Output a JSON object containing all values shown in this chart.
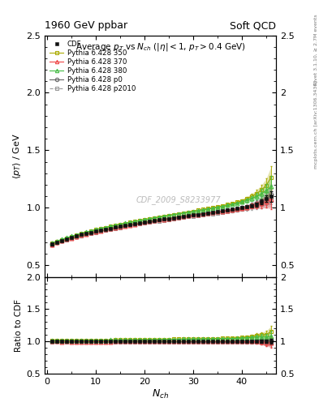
{
  "title_top": "1960 GeV ppbar",
  "title_right": "Soft QCD",
  "plot_title": "Average $p_T$ vs $N_{ch}$ ($|\\eta| < 1$, $p_T > 0.4$ GeV)",
  "ylabel_main": "$\\langle p_T \\rangle$ / GeV",
  "ylabel_ratio": "Ratio to CDF",
  "xlabel": "$N_{ch}$",
  "right_label_top": "Rivet 3.1.10, ≥ 2.7M events",
  "right_label_bot": "mcplots.cern.ch [arXiv:1306.3436]",
  "watermark": "CDF_2009_S8233977",
  "ylim_main": [
    0.4,
    2.5
  ],
  "ylim_ratio": [
    0.5,
    2.0
  ],
  "xlim": [
    -0.5,
    47
  ],
  "yticks_main": [
    0.5,
    1.0,
    1.5,
    2.0,
    2.5
  ],
  "yticks_ratio": [
    0.5,
    1.0,
    1.5,
    2.0
  ],
  "xticks": [
    0,
    10,
    20,
    30,
    40
  ],
  "bg_color": "#ffffff",
  "series": {
    "CDF": {
      "x": [
        1,
        2,
        3,
        4,
        5,
        6,
        7,
        8,
        9,
        10,
        11,
        12,
        13,
        14,
        15,
        16,
        17,
        18,
        19,
        20,
        21,
        22,
        23,
        24,
        25,
        26,
        27,
        28,
        29,
        30,
        31,
        32,
        33,
        34,
        35,
        36,
        37,
        38,
        39,
        40,
        41,
        42,
        43,
        44,
        45,
        46
      ],
      "y": [
        0.685,
        0.7,
        0.716,
        0.73,
        0.744,
        0.756,
        0.767,
        0.778,
        0.788,
        0.797,
        0.806,
        0.815,
        0.823,
        0.831,
        0.839,
        0.847,
        0.854,
        0.861,
        0.868,
        0.875,
        0.882,
        0.889,
        0.895,
        0.901,
        0.907,
        0.913,
        0.919,
        0.925,
        0.931,
        0.937,
        0.943,
        0.949,
        0.955,
        0.961,
        0.967,
        0.973,
        0.98,
        0.987,
        0.994,
        1.001,
        1.01,
        1.02,
        1.03,
        1.05,
        1.08,
        1.1
      ],
      "yerr": [
        0.01,
        0.007,
        0.006,
        0.005,
        0.005,
        0.004,
        0.004,
        0.004,
        0.004,
        0.003,
        0.003,
        0.003,
        0.003,
        0.003,
        0.003,
        0.003,
        0.003,
        0.003,
        0.003,
        0.003,
        0.003,
        0.003,
        0.003,
        0.003,
        0.003,
        0.003,
        0.003,
        0.003,
        0.003,
        0.003,
        0.003,
        0.003,
        0.004,
        0.004,
        0.004,
        0.005,
        0.005,
        0.006,
        0.007,
        0.008,
        0.01,
        0.013,
        0.017,
        0.022,
        0.03,
        0.045
      ],
      "color": "#111111",
      "marker": "s",
      "markersize": 3.5,
      "zorder": 10,
      "filled": true,
      "linestyle": "none"
    },
    "Pythia350": {
      "x": [
        1,
        2,
        3,
        4,
        5,
        6,
        7,
        8,
        9,
        10,
        11,
        12,
        13,
        14,
        15,
        16,
        17,
        18,
        19,
        20,
        21,
        22,
        23,
        24,
        25,
        26,
        27,
        28,
        29,
        30,
        31,
        32,
        33,
        34,
        35,
        36,
        37,
        38,
        39,
        40,
        41,
        42,
        43,
        44,
        45,
        46
      ],
      "y": [
        0.69,
        0.708,
        0.723,
        0.738,
        0.752,
        0.764,
        0.776,
        0.788,
        0.799,
        0.81,
        0.82,
        0.829,
        0.839,
        0.848,
        0.857,
        0.865,
        0.874,
        0.882,
        0.89,
        0.898,
        0.906,
        0.913,
        0.921,
        0.928,
        0.935,
        0.943,
        0.95,
        0.957,
        0.964,
        0.971,
        0.979,
        0.986,
        0.994,
        1.002,
        1.01,
        1.019,
        1.028,
        1.038,
        1.049,
        1.062,
        1.08,
        1.1,
        1.125,
        1.155,
        1.195,
        1.265
      ],
      "yerr": [
        0.015,
        0.01,
        0.008,
        0.007,
        0.006,
        0.006,
        0.005,
        0.005,
        0.005,
        0.004,
        0.004,
        0.004,
        0.004,
        0.004,
        0.004,
        0.004,
        0.004,
        0.004,
        0.004,
        0.004,
        0.004,
        0.004,
        0.004,
        0.004,
        0.004,
        0.004,
        0.004,
        0.004,
        0.005,
        0.005,
        0.005,
        0.005,
        0.006,
        0.006,
        0.007,
        0.007,
        0.008,
        0.009,
        0.011,
        0.013,
        0.017,
        0.022,
        0.03,
        0.042,
        0.06,
        0.095
      ],
      "color": "#aaaa00",
      "marker": "s",
      "markersize": 3.5,
      "zorder": 6,
      "filled": false,
      "linestyle": "-"
    },
    "Pythia370": {
      "x": [
        1,
        2,
        3,
        4,
        5,
        6,
        7,
        8,
        9,
        10,
        11,
        12,
        13,
        14,
        15,
        16,
        17,
        18,
        19,
        20,
        21,
        22,
        23,
        24,
        25,
        26,
        27,
        28,
        29,
        30,
        31,
        32,
        33,
        34,
        35,
        36,
        37,
        38,
        39,
        40,
        41,
        42,
        43,
        44,
        45,
        46
      ],
      "y": [
        0.682,
        0.698,
        0.712,
        0.726,
        0.738,
        0.75,
        0.761,
        0.772,
        0.782,
        0.791,
        0.801,
        0.81,
        0.818,
        0.827,
        0.835,
        0.843,
        0.851,
        0.858,
        0.866,
        0.873,
        0.88,
        0.887,
        0.894,
        0.9,
        0.907,
        0.913,
        0.919,
        0.925,
        0.931,
        0.937,
        0.943,
        0.948,
        0.954,
        0.96,
        0.966,
        0.971,
        0.977,
        0.983,
        0.99,
        0.997,
        1.005,
        1.015,
        1.025,
        1.038,
        1.055,
        1.075
      ],
      "yerr": [
        0.015,
        0.01,
        0.008,
        0.007,
        0.006,
        0.006,
        0.005,
        0.005,
        0.005,
        0.004,
        0.004,
        0.004,
        0.004,
        0.004,
        0.004,
        0.004,
        0.004,
        0.004,
        0.004,
        0.004,
        0.004,
        0.004,
        0.004,
        0.004,
        0.004,
        0.004,
        0.004,
        0.004,
        0.005,
        0.005,
        0.005,
        0.005,
        0.006,
        0.006,
        0.007,
        0.007,
        0.008,
        0.009,
        0.011,
        0.013,
        0.017,
        0.022,
        0.03,
        0.042,
        0.055,
        0.085
      ],
      "color": "#ee4444",
      "marker": "^",
      "markersize": 3.5,
      "zorder": 7,
      "filled": false,
      "linestyle": "-"
    },
    "Pythia380": {
      "x": [
        1,
        2,
        3,
        4,
        5,
        6,
        7,
        8,
        9,
        10,
        11,
        12,
        13,
        14,
        15,
        16,
        17,
        18,
        19,
        20,
        21,
        22,
        23,
        24,
        25,
        26,
        27,
        28,
        29,
        30,
        31,
        32,
        33,
        34,
        35,
        36,
        37,
        38,
        39,
        40,
        41,
        42,
        43,
        44,
        45,
        46
      ],
      "y": [
        0.692,
        0.71,
        0.726,
        0.74,
        0.753,
        0.766,
        0.778,
        0.789,
        0.8,
        0.811,
        0.821,
        0.83,
        0.84,
        0.849,
        0.857,
        0.866,
        0.874,
        0.882,
        0.89,
        0.898,
        0.905,
        0.913,
        0.92,
        0.927,
        0.934,
        0.941,
        0.948,
        0.955,
        0.962,
        0.969,
        0.976,
        0.983,
        0.99,
        0.997,
        1.005,
        1.013,
        1.021,
        1.03,
        1.04,
        1.052,
        1.065,
        1.082,
        1.1,
        1.122,
        1.15,
        1.185
      ],
      "yerr": [
        0.015,
        0.01,
        0.008,
        0.007,
        0.006,
        0.006,
        0.005,
        0.005,
        0.005,
        0.004,
        0.004,
        0.004,
        0.004,
        0.004,
        0.004,
        0.004,
        0.004,
        0.004,
        0.004,
        0.004,
        0.004,
        0.004,
        0.004,
        0.004,
        0.004,
        0.004,
        0.004,
        0.004,
        0.005,
        0.005,
        0.005,
        0.005,
        0.006,
        0.006,
        0.007,
        0.007,
        0.008,
        0.009,
        0.011,
        0.013,
        0.017,
        0.022,
        0.03,
        0.042,
        0.058,
        0.09
      ],
      "color": "#44bb44",
      "marker": "^",
      "markersize": 3.5,
      "zorder": 8,
      "filled": false,
      "linestyle": "-"
    },
    "Pythiap0": {
      "x": [
        1,
        2,
        3,
        4,
        5,
        6,
        7,
        8,
        9,
        10,
        11,
        12,
        13,
        14,
        15,
        16,
        17,
        18,
        19,
        20,
        21,
        22,
        23,
        24,
        25,
        26,
        27,
        28,
        29,
        30,
        31,
        32,
        33,
        34,
        35,
        36,
        37,
        38,
        39,
        40,
        41,
        42,
        43,
        44,
        45,
        46
      ],
      "y": [
        0.684,
        0.7,
        0.714,
        0.728,
        0.741,
        0.752,
        0.763,
        0.774,
        0.784,
        0.794,
        0.803,
        0.812,
        0.82,
        0.829,
        0.837,
        0.845,
        0.852,
        0.86,
        0.867,
        0.874,
        0.881,
        0.888,
        0.895,
        0.901,
        0.907,
        0.914,
        0.92,
        0.926,
        0.932,
        0.938,
        0.944,
        0.949,
        0.955,
        0.961,
        0.967,
        0.973,
        0.979,
        0.985,
        0.992,
        1.0,
        1.01,
        1.023,
        1.038,
        1.058,
        1.082,
        1.115
      ],
      "yerr": [
        0.015,
        0.01,
        0.008,
        0.007,
        0.006,
        0.006,
        0.005,
        0.005,
        0.005,
        0.004,
        0.004,
        0.004,
        0.004,
        0.004,
        0.004,
        0.004,
        0.004,
        0.004,
        0.004,
        0.004,
        0.004,
        0.004,
        0.004,
        0.004,
        0.004,
        0.004,
        0.004,
        0.004,
        0.005,
        0.005,
        0.005,
        0.005,
        0.006,
        0.006,
        0.007,
        0.007,
        0.008,
        0.009,
        0.011,
        0.013,
        0.017,
        0.022,
        0.03,
        0.042,
        0.058,
        0.085
      ],
      "color": "#666666",
      "marker": "o",
      "markersize": 3.5,
      "zorder": 5,
      "filled": false,
      "linestyle": "-"
    },
    "Pythiap2010": {
      "x": [
        1,
        2,
        3,
        4,
        5,
        6,
        7,
        8,
        9,
        10,
        11,
        12,
        13,
        14,
        15,
        16,
        17,
        18,
        19,
        20,
        21,
        22,
        23,
        24,
        25,
        26,
        27,
        28,
        29,
        30,
        31,
        32,
        33,
        34,
        35,
        36,
        37,
        38,
        39,
        40,
        41,
        42,
        43,
        44,
        45,
        46
      ],
      "y": [
        0.681,
        0.697,
        0.711,
        0.724,
        0.736,
        0.747,
        0.758,
        0.769,
        0.778,
        0.788,
        0.797,
        0.806,
        0.814,
        0.822,
        0.83,
        0.838,
        0.845,
        0.852,
        0.859,
        0.866,
        0.873,
        0.88,
        0.886,
        0.892,
        0.898,
        0.904,
        0.91,
        0.916,
        0.922,
        0.928,
        0.933,
        0.939,
        0.944,
        0.95,
        0.955,
        0.961,
        0.967,
        0.973,
        0.979,
        0.986,
        0.995,
        1.007,
        1.02,
        1.038,
        1.06,
        1.09
      ],
      "yerr": [
        0.015,
        0.01,
        0.008,
        0.007,
        0.006,
        0.006,
        0.005,
        0.005,
        0.005,
        0.004,
        0.004,
        0.004,
        0.004,
        0.004,
        0.004,
        0.004,
        0.004,
        0.004,
        0.004,
        0.004,
        0.004,
        0.004,
        0.004,
        0.004,
        0.004,
        0.004,
        0.004,
        0.004,
        0.005,
        0.005,
        0.005,
        0.005,
        0.006,
        0.006,
        0.007,
        0.007,
        0.008,
        0.009,
        0.011,
        0.013,
        0.017,
        0.022,
        0.03,
        0.042,
        0.055,
        0.08
      ],
      "color": "#999999",
      "marker": "s",
      "markersize": 3.5,
      "zorder": 4,
      "filled": false,
      "linestyle": "--"
    }
  }
}
